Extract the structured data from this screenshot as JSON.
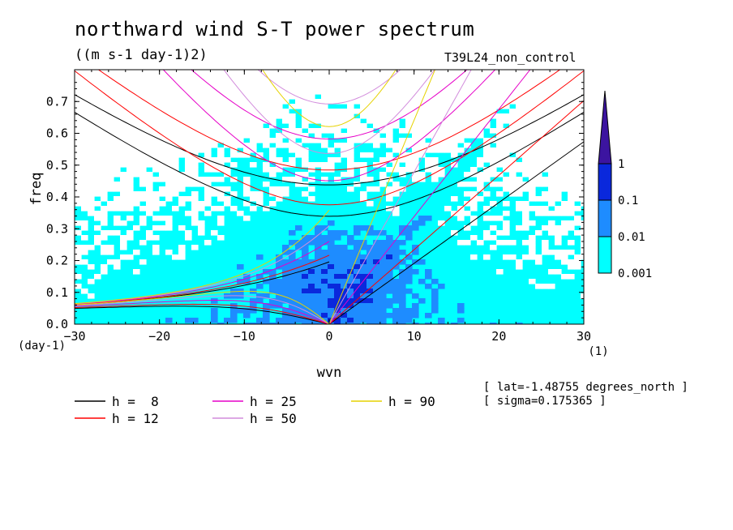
{
  "title": "northward wind S-T power spectrum",
  "units": "((m s-1 day-1)2)",
  "run_name": "T39L24_non_control",
  "info": [
    "[ lat=-1.48755 degrees_north ]",
    "[ sigma=0.175365 ]"
  ],
  "x_unit": "(1)",
  "y_unit": "(day-1)",
  "colors": {
    "shade_0": "#00ffff",
    "shade_1": "#1e8cff",
    "shade_2": "#0a28dc",
    "shade_3": "#3c14a0"
  },
  "chart_data": {
    "type": "heatmap",
    "xlabel": "wvn",
    "ylabel": "freq",
    "xlim": [
      -30,
      30
    ],
    "ylim": [
      0,
      0.8
    ],
    "xticks": [
      -30,
      -20,
      -10,
      0,
      10,
      20,
      30
    ],
    "yticks": [
      0.0,
      0.1,
      0.2,
      0.3,
      0.4,
      0.5,
      0.6,
      0.7
    ],
    "colorbar": {
      "levels": [
        "0.001",
        "0.01",
        "0.1",
        "1"
      ],
      "colors": [
        "#00ffff",
        "#1e8cff",
        "#0a28dc",
        "#3c14a0"
      ],
      "extend": "max"
    },
    "dispersion_curves": [
      {
        "name": "h =  8",
        "h": 8,
        "color": "#000000"
      },
      {
        "name": "h = 12",
        "h": 12,
        "color": "#ff0000"
      },
      {
        "name": "h = 25",
        "h": 25,
        "color": "#e600c8"
      },
      {
        "name": "h = 50",
        "h": 50,
        "color": "#d28cdc"
      },
      {
        "name": "h = 90",
        "h": 90,
        "color": "#e6d200"
      }
    ]
  }
}
